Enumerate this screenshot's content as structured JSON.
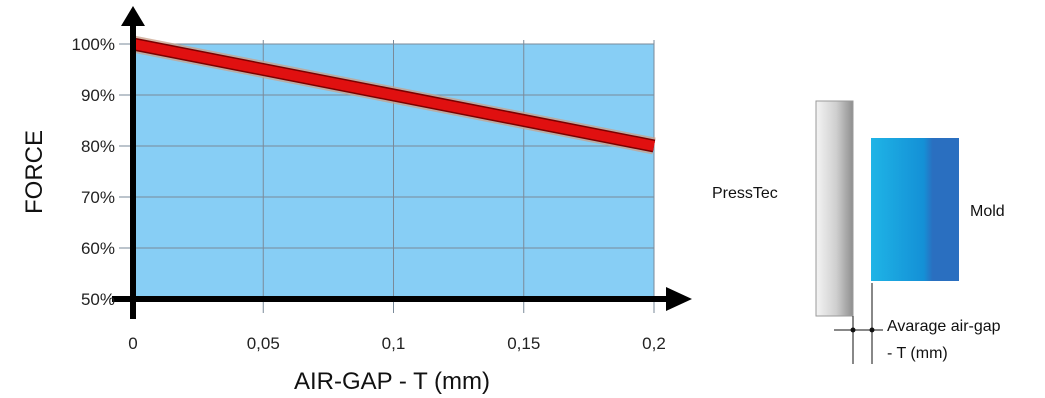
{
  "chart_data": {
    "type": "line",
    "title": "",
    "xlabel": "AIR-GAP - T (mm)",
    "ylabel": "FORCE",
    "x": [
      0,
      0.2
    ],
    "series": [
      {
        "values": [
          100,
          80
        ],
        "color": "#e01010"
      }
    ],
    "xlim": [
      0,
      0.2
    ],
    "ylim": [
      50,
      100
    ],
    "x_ticks": [
      0,
      0.05,
      0.1,
      0.15,
      0.2
    ],
    "x_tick_labels": [
      "0",
      "0,05",
      "0,1",
      "0,15",
      "0,2"
    ],
    "y_ticks": [
      50,
      60,
      70,
      80,
      90,
      100
    ],
    "y_tick_labels": [
      "50%",
      "60%",
      "70%",
      "80%",
      "90%",
      "100%"
    ],
    "grid": true,
    "plot_background": "#87cef5",
    "grid_color": "#7a8a99"
  },
  "diagram": {
    "presstec_label": "PressTec",
    "mold_label": "Mold",
    "airgap_label_line1": "Avarage air-gap",
    "airgap_label_line2": "- T (mm)"
  }
}
